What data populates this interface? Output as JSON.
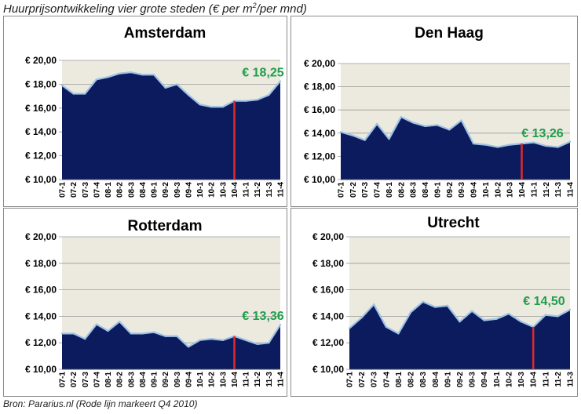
{
  "title": "Huurprijsontwikkeling vier grote steden (€ per m",
  "title_sup": "2",
  "title_tail": "/per mnd)",
  "source": "Bron: Pararius.nl (Rode  lijn markeert Q4 2010)",
  "colors": {
    "plot_bg": "#ECE9DF",
    "area": "#0B1B5E",
    "line": "#9EC3E6",
    "marker": "#E02A2A",
    "label": "#1E9E4A",
    "grid": "#9A9A9A"
  },
  "y_tick_labels": [
    "€ 10,00",
    "€ 12,00",
    "€ 14,00",
    "€ 16,00",
    "€ 18,00",
    "€ 20,00"
  ],
  "chart_data": [
    {
      "type": "area",
      "title": "Amsterdam",
      "ylim": [
        10,
        20
      ],
      "yticks": [
        10,
        12,
        14,
        16,
        18,
        20
      ],
      "categories": [
        "07-1",
        "07-2",
        "07-3",
        "07-4",
        "08-1",
        "08-2",
        "08-3",
        "08-4",
        "09-1",
        "09-2",
        "09-3",
        "09-4",
        "10-1",
        "10-2",
        "10-3",
        "10-4",
        "11-1",
        "11-2",
        "11-3",
        "11-4"
      ],
      "x_tick_labels": [
        "07-1",
        "07-2",
        "07-3",
        "07-4",
        "08-1",
        "08-2",
        "08-3",
        "08-4",
        "09-1",
        "09-2",
        "09-3",
        "09-4",
        "10-1",
        "10-2",
        "10-3",
        "10-4",
        "11-1",
        "11-2",
        "11-3",
        "11-4"
      ],
      "values": [
        17.9,
        17.2,
        17.2,
        18.4,
        18.6,
        18.9,
        19.0,
        18.8,
        18.8,
        17.7,
        18.0,
        17.1,
        16.3,
        16.1,
        16.1,
        16.6,
        16.6,
        16.7,
        17.1,
        18.25
      ],
      "marker_index": 15,
      "label": "€ 18,25",
      "label_index": 19
    },
    {
      "type": "area",
      "title": "Den Haag",
      "ylim": [
        10,
        20
      ],
      "yticks": [
        10,
        12,
        14,
        16,
        18,
        20
      ],
      "categories": [
        "07-1",
        "07-2",
        "07-3",
        "07-4",
        "08-1",
        "08-2",
        "08-3",
        "08-4",
        "09-1",
        "09-2",
        "09-3",
        "09-4",
        "10-1",
        "10-2",
        "10-3",
        "10-4",
        "11-1",
        "11-2",
        "11-3",
        "11-4"
      ],
      "x_tick_labels": [
        "07-1",
        "07-2",
        "07-3",
        "07-4",
        "08-1",
        "08-2",
        "08-3",
        "08-4",
        "09-1",
        "09-2",
        "09-3",
        "09-4",
        "10-1",
        "10-2",
        "10-3",
        "10-4",
        "11-1",
        "11-2",
        "11-3",
        "11-4"
      ],
      "values": [
        14.1,
        13.8,
        13.4,
        14.8,
        13.5,
        15.4,
        14.9,
        14.6,
        14.7,
        14.3,
        15.1,
        13.1,
        13.0,
        12.8,
        13.0,
        13.1,
        13.2,
        12.9,
        12.8,
        13.26
      ],
      "marker_index": 15,
      "label": "€ 13,26",
      "label_index": 19
    },
    {
      "type": "area",
      "title": "Rotterdam",
      "ylim": [
        10,
        20
      ],
      "yticks": [
        10,
        12,
        14,
        16,
        18,
        20
      ],
      "categories": [
        "07-1",
        "07-2",
        "07-3",
        "07-4",
        "08-1",
        "08-2",
        "08-3",
        "08-4",
        "09-1",
        "09-2",
        "09-3",
        "09-4",
        "10-1",
        "10-2",
        "10-3",
        "10-4",
        "11-1",
        "11-2",
        "11-3",
        "11-4"
      ],
      "x_tick_labels": [
        "07-1",
        "07-2",
        "07-3",
        "07-4",
        "08-1",
        "08-2",
        "08-3",
        "08-4",
        "09-1",
        "09-2",
        "09-3",
        "09-4",
        "10-1",
        "10-2",
        "10-3",
        "10-4",
        "11-1",
        "11-2",
        "11-3",
        "11-4"
      ],
      "values": [
        12.7,
        12.7,
        12.3,
        13.4,
        12.9,
        13.6,
        12.7,
        12.7,
        12.8,
        12.5,
        12.5,
        11.7,
        12.2,
        12.3,
        12.2,
        12.5,
        12.2,
        11.9,
        12.0,
        13.36
      ],
      "marker_index": 15,
      "label": "€ 13,36",
      "label_index": 19
    },
    {
      "type": "area",
      "title": "Utrecht",
      "ylim": [
        10,
        20
      ],
      "yticks": [
        10,
        12,
        14,
        16,
        18,
        20
      ],
      "categories": [
        "07-1",
        "07-2",
        "07-3",
        "07-4",
        "08-1",
        "08-2",
        "08-3",
        "08-4",
        "09-1",
        "09-2",
        "09-3",
        "09-4",
        "10-1",
        "10-2",
        "10-3",
        "10-4",
        "11-1",
        "11-2",
        "11-3"
      ],
      "x_tick_labels": [
        "07-1",
        "07-2",
        "07-3",
        "07-4",
        "08-1",
        "08-2",
        "08-3",
        "08-4",
        "09-1",
        "09-2",
        "09-3",
        "09-4",
        "10-1",
        "10-2",
        "10-3",
        "10-4",
        "11-1",
        "11-2",
        "11-3"
      ],
      "values": [
        13.1,
        13.9,
        14.9,
        13.2,
        12.7,
        14.3,
        15.1,
        14.7,
        14.8,
        13.6,
        14.4,
        13.7,
        13.8,
        14.2,
        13.6,
        13.2,
        14.1,
        14.0,
        14.5
      ],
      "marker_index": 15,
      "label": "€ 14,50",
      "label_index": 18
    }
  ]
}
